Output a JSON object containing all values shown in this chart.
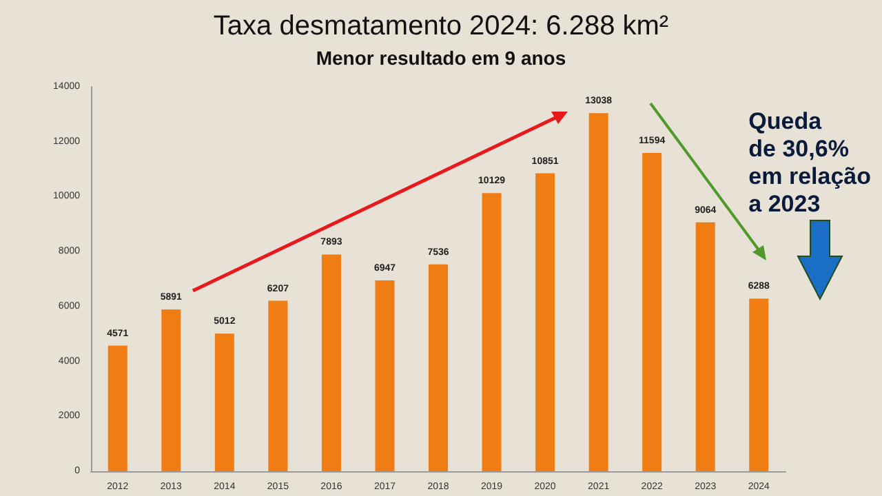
{
  "chart_data": {
    "type": "bar",
    "title": "Taxa desmatamento 2024: 6.288 km²",
    "subtitle": "Menor resultado em 9 anos",
    "categories": [
      "2012",
      "2013",
      "2014",
      "2015",
      "2016",
      "2017",
      "2018",
      "2019",
      "2020",
      "2021",
      "2022",
      "2023",
      "2024"
    ],
    "values": [
      4571,
      5891,
      5012,
      6207,
      7893,
      6947,
      7536,
      10129,
      10851,
      13038,
      11594,
      9064,
      6288
    ],
    "color": "#f07c14",
    "ylim": [
      0,
      14000
    ],
    "yticks": [
      0,
      2000,
      4000,
      6000,
      8000,
      10000,
      12000,
      14000
    ],
    "grid": false,
    "data_labels": true,
    "annotations": [
      "Queda\nde 30,6%\nem relação\na 2023"
    ]
  }
}
